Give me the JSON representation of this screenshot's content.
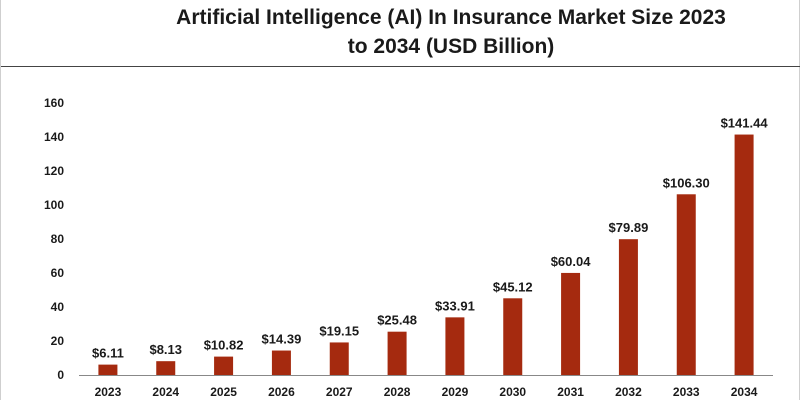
{
  "chart_data": {
    "type": "bar",
    "title_lines": [
      "Artificial Intelligence (AI) In Insurance Market Size 2023",
      "to 2034 (USD Billion)"
    ],
    "categories": [
      "2023",
      "2024",
      "2025",
      "2026",
      "2027",
      "2028",
      "2029",
      "2030",
      "2031",
      "2032",
      "2033",
      "2034"
    ],
    "values": [
      6.11,
      8.13,
      10.82,
      14.39,
      19.15,
      25.48,
      33.91,
      45.12,
      60.04,
      79.89,
      106.3,
      141.44
    ],
    "data_labels": [
      "$6.11",
      "$8.13",
      "$10.82",
      "$14.39",
      "$19.15",
      "$25.48",
      "$33.91",
      "$45.12",
      "$60.04",
      "$79.89",
      "$106.30",
      "$141.44"
    ],
    "y_ticks": [
      "0",
      "20",
      "40",
      "60",
      "80",
      "100",
      "120",
      "140",
      "160"
    ],
    "ylim": [
      0,
      160
    ],
    "grid": false,
    "legend": "none",
    "bar_color": "#a52a0f",
    "axis_color": "#888888"
  }
}
